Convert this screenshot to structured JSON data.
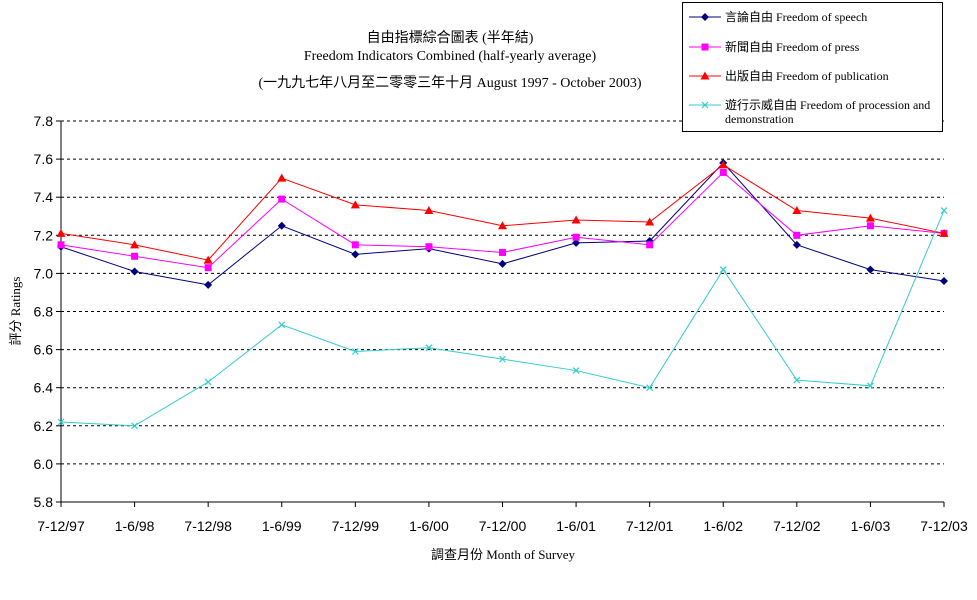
{
  "chart_data": {
    "type": "line",
    "title": "自由指標綜合圖表 (半年結)",
    "subtitle": "Freedom Indicators Combined (half-yearly average)",
    "subtitle2": "(一九九七年八月至二零零三年十月 August 1997 - October 2003)",
    "xlabel": "調查月份 Month of Survey",
    "ylabel": "評分 Ratings",
    "ylim": [
      5.8,
      7.8
    ],
    "yticks": [
      "5.8",
      "6.0",
      "6.2",
      "6.4",
      "6.6",
      "6.8",
      "7.0",
      "7.2",
      "7.4",
      "7.6",
      "7.8"
    ],
    "grid": "horizontal-dashed",
    "legend_position": "top-right",
    "categories": [
      "7-12/97",
      "1-6/98",
      "7-12/98",
      "1-6/99",
      "7-12/99",
      "1-6/00",
      "7-12/00",
      "1-6/01",
      "7-12/01",
      "1-6/02",
      "7-12/02",
      "1-6/03",
      "7-12/03"
    ],
    "series": [
      {
        "name": "言論自由 Freedom of speech",
        "color": "#00007F",
        "marker": "diamond",
        "values": [
          7.14,
          7.01,
          6.94,
          7.25,
          7.1,
          7.13,
          7.05,
          7.16,
          7.17,
          7.58,
          7.15,
          7.02,
          6.96
        ]
      },
      {
        "name": "新聞自由 Freedom of press",
        "color": "#FF00FF",
        "marker": "square",
        "values": [
          7.15,
          7.09,
          7.03,
          7.39,
          7.15,
          7.14,
          7.11,
          7.19,
          7.15,
          7.53,
          7.2,
          7.25,
          7.21
        ]
      },
      {
        "name": "出版自由 Freedom of publication",
        "color": "#FF0000",
        "marker": "triangle",
        "values": [
          7.21,
          7.15,
          7.07,
          7.5,
          7.36,
          7.33,
          7.25,
          7.28,
          7.27,
          7.57,
          7.33,
          7.29,
          7.21
        ]
      },
      {
        "name": "遊行示威自由 Freedom of procession and demonstration",
        "color": "#33CCCC",
        "marker": "x",
        "values": [
          6.22,
          6.2,
          6.43,
          6.73,
          6.59,
          6.61,
          6.55,
          6.49,
          6.4,
          7.02,
          6.44,
          6.41,
          7.33
        ]
      }
    ]
  }
}
